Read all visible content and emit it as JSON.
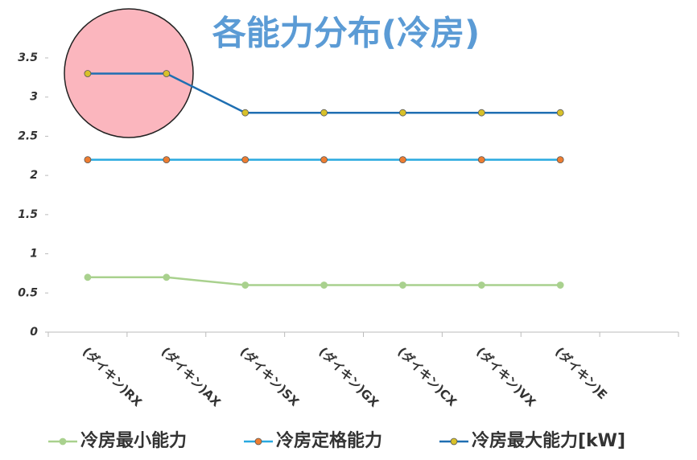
{
  "chart_data": {
    "type": "line",
    "title": "各能力分布(冷房)",
    "categories": [
      "(ダイキン)RX",
      "(ダイキン)AX",
      "(ダイキン)SX",
      "(ダイキン)GX",
      "(ダイキン)CX",
      "(ダイキン)VX",
      "(ダイキン)E",
      null
    ],
    "series": [
      {
        "name": "冷房最小能力",
        "color": "#a9d18e",
        "marker_color": "#a9d18e",
        "values": [
          0.7,
          0.7,
          0.6,
          0.6,
          0.6,
          0.6,
          0.6,
          null
        ]
      },
      {
        "name": "冷房定格能力",
        "color": "#29a9e0",
        "marker_color": "#ed7d31",
        "values": [
          2.2,
          2.2,
          2.2,
          2.2,
          2.2,
          2.2,
          2.2,
          null
        ]
      },
      {
        "name": "冷房最大能力[kW]",
        "color": "#1f6fb2",
        "marker_color": "#d8c12a",
        "values": [
          3.3,
          3.3,
          2.8,
          2.8,
          2.8,
          2.8,
          2.8,
          null
        ]
      }
    ],
    "ylim": [
      0,
      3.5
    ],
    "yticks": [
      0,
      0.5,
      1,
      1.5,
      2,
      2.5,
      3,
      3.5
    ],
    "grid": false,
    "legend": "bottom"
  }
}
